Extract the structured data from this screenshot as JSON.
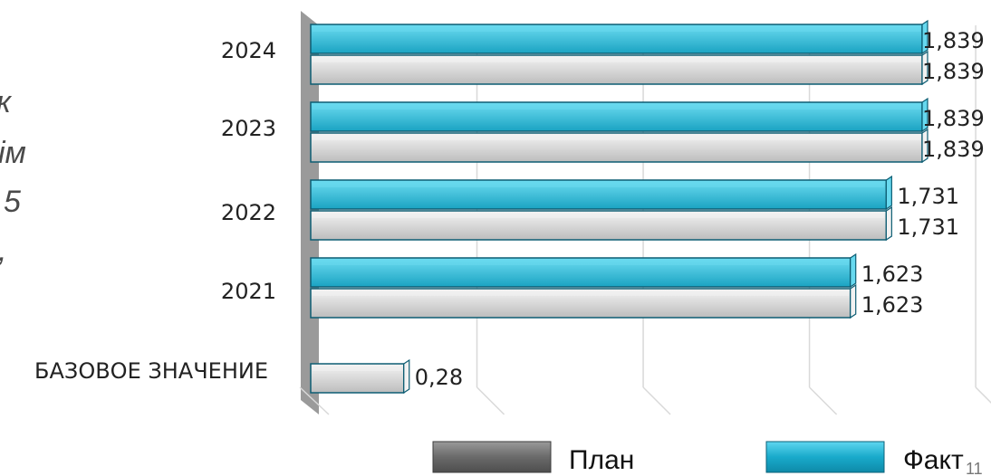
{
  "side_text_fragments": [
    "к",
    "ім",
    "5",
    ","
  ],
  "page_number": "11",
  "colors": {
    "plan_fill": "#cfcfcf",
    "plan_light": "#f2f2f2",
    "fact_fill": "#2bb3d1",
    "fact_light": "#67d9ef",
    "bar_stroke": "#0d5d73",
    "wall": "#9a9a9a",
    "grid": "#d9d9d9",
    "legend_plan": "#6e6e6e",
    "legend_fact": "#16a9c9"
  },
  "chart_data": {
    "type": "bar",
    "orientation": "horizontal",
    "categories": [
      "2024",
      "2023",
      "2022",
      "2021",
      "БАЗОВОЕ ЗНАЧЕНИЕ"
    ],
    "series": [
      {
        "name": "Факт",
        "values": [
          1.839,
          1.839,
          1.731,
          1.623,
          null
        ],
        "labels": [
          "1,839",
          "1,839",
          "1,731",
          "1,623",
          ""
        ]
      },
      {
        "name": "План",
        "values": [
          1.839,
          1.839,
          1.731,
          1.623,
          0.28
        ],
        "labels": [
          "1,839",
          "1,839",
          "1,731",
          "1,623",
          "0,28"
        ]
      }
    ],
    "xlim": [
      0,
      2.0
    ],
    "grid": true,
    "legend": {
      "position": "bottom-right",
      "entries": [
        "План",
        "Факт"
      ]
    },
    "title": "",
    "xlabel": "",
    "ylabel": ""
  }
}
